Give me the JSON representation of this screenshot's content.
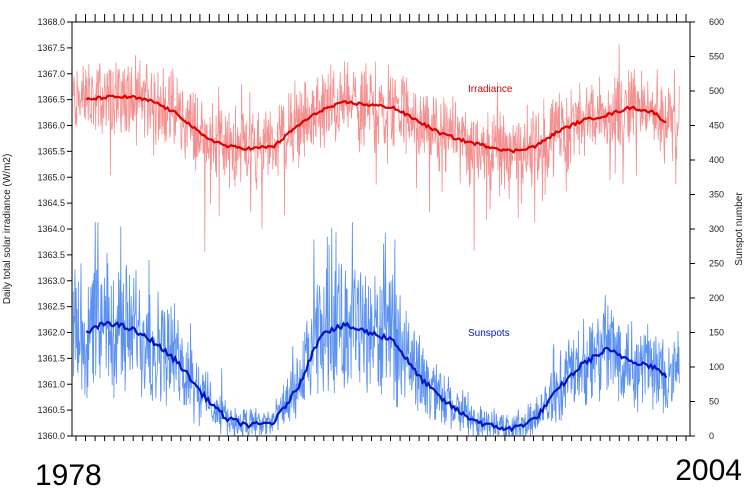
{
  "chart_data": {
    "type": "line",
    "left_axis": {
      "label": "Daily total solar irradiance (W/m2)",
      "range": [
        1360.0,
        1368.0
      ],
      "ticks": [
        "1360.0",
        "1360.5",
        "1361.0",
        "1361.5",
        "1362.0",
        "1362.5",
        "1363.0",
        "1363.5",
        "1364.0",
        "1364.5",
        "1365.0",
        "1365.5",
        "1366.0",
        "1366.5",
        "1367.0",
        "1367.5",
        "1368.0"
      ]
    },
    "right_axis": {
      "label": "Sunspot number",
      "range": [
        0,
        600
      ],
      "ticks": [
        "0",
        "50",
        "100",
        "150",
        "200",
        "250",
        "300",
        "350",
        "400",
        "450",
        "500",
        "550",
        "600"
      ]
    },
    "x_range": [
      1978,
      2004
    ],
    "x_labels": {
      "start": "1978",
      "end": "2004"
    },
    "series": [
      {
        "name": "Irradiance",
        "axis": "left",
        "color": "#e00000",
        "raw_color": "#f49090",
        "smoothed": {
          "x": [
            1978.6,
            1979.5,
            1980.5,
            1981.5,
            1982.5,
            1983.5,
            1984.5,
            1985.5,
            1986.5,
            1987.5,
            1988.5,
            1989.5,
            1990.5,
            1991.5,
            1992.5,
            1993.5,
            1994.5,
            1995.5,
            1996.5,
            1997.5,
            1998.5,
            1999.5,
            2000.5,
            2001.5,
            2002.5,
            2003.0
          ],
          "y": [
            1366.5,
            1366.55,
            1366.55,
            1366.45,
            1366.2,
            1365.8,
            1365.6,
            1365.55,
            1365.6,
            1366.0,
            1366.3,
            1366.45,
            1366.4,
            1366.35,
            1366.1,
            1365.85,
            1365.7,
            1365.6,
            1365.5,
            1365.6,
            1365.9,
            1366.1,
            1366.2,
            1366.35,
            1366.25,
            1366.05
          ]
        }
      },
      {
        "name": "Sunspots",
        "axis": "right",
        "color": "#0015c8",
        "raw_color": "#5a90f0",
        "smoothed": {
          "x": [
            1978.6,
            1979.5,
            1980.5,
            1981.5,
            1982.5,
            1983.5,
            1984.5,
            1985.5,
            1986.5,
            1987.5,
            1988.5,
            1989.5,
            1990.5,
            1991.5,
            1992.5,
            1993.5,
            1994.5,
            1995.5,
            1996.5,
            1997.5,
            1998.5,
            1999.5,
            2000.5,
            2001.5,
            2002.5,
            2003.0
          ],
          "y": [
            150,
            165,
            155,
            135,
            105,
            60,
            25,
            15,
            20,
            70,
            150,
            160,
            150,
            140,
            90,
            55,
            30,
            15,
            10,
            25,
            70,
            105,
            125,
            110,
            100,
            85
          ]
        }
      }
    ],
    "grid": false
  }
}
